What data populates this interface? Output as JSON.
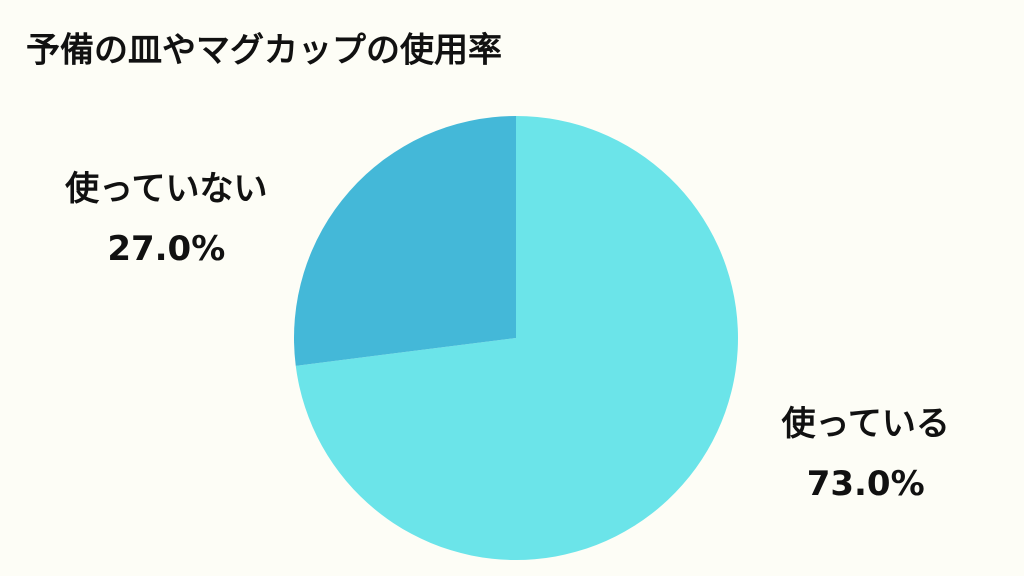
{
  "chart_data": {
    "type": "pie",
    "title": "予備の皿やマグカップの使用率",
    "categories": [
      "使っている",
      "使っていない"
    ],
    "values": [
      73.0,
      27.0
    ],
    "value_labels": [
      "73.0%",
      "27.0%"
    ],
    "colors": [
      "#6be4e9",
      "#44b8d8"
    ]
  }
}
